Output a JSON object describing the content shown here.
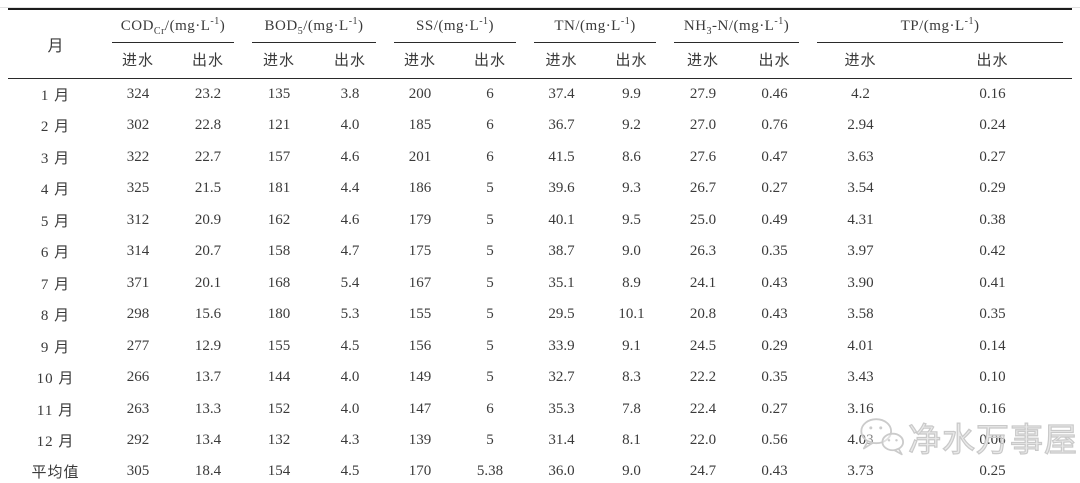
{
  "table": {
    "month_header": "月",
    "average_label": "平均值",
    "subheaders": {
      "in": "进水",
      "out": "出水"
    },
    "groups": [
      {
        "base": "COD",
        "sub": "Cr",
        "tail": "",
        "unit_pre": "/(mg·L",
        "unit_sup": "-1",
        "unit_post": ")"
      },
      {
        "base": "BOD",
        "sub": "5",
        "tail": "",
        "unit_pre": "/(mg·L",
        "unit_sup": "-1",
        "unit_post": ")"
      },
      {
        "base": "SS",
        "sub": "",
        "tail": "",
        "unit_pre": "/(mg·L",
        "unit_sup": "-1",
        "unit_post": ")"
      },
      {
        "base": "TN",
        "sub": "",
        "tail": "",
        "unit_pre": "/(mg·L",
        "unit_sup": "-1",
        "unit_post": ")"
      },
      {
        "base": "NH",
        "sub": "3",
        "tail": "-N",
        "unit_pre": "/(mg·L",
        "unit_sup": "-1",
        "unit_post": ")"
      },
      {
        "base": "TP",
        "sub": "",
        "tail": "",
        "unit_pre": "/(mg·L",
        "unit_sup": "-1",
        "unit_post": ")"
      }
    ],
    "rows": [
      {
        "month": "1 月",
        "values": [
          "324",
          "23.2",
          "135",
          "3.8",
          "200",
          "6",
          "37.4",
          "9.9",
          "27.9",
          "0.46",
          "4.2",
          "0.16"
        ]
      },
      {
        "month": "2 月",
        "values": [
          "302",
          "22.8",
          "121",
          "4.0",
          "185",
          "6",
          "36.7",
          "9.2",
          "27.0",
          "0.76",
          "2.94",
          "0.24"
        ]
      },
      {
        "month": "3 月",
        "values": [
          "322",
          "22.7",
          "157",
          "4.6",
          "201",
          "6",
          "41.5",
          "8.6",
          "27.6",
          "0.47",
          "3.63",
          "0.27"
        ]
      },
      {
        "month": "4 月",
        "values": [
          "325",
          "21.5",
          "181",
          "4.4",
          "186",
          "5",
          "39.6",
          "9.3",
          "26.7",
          "0.27",
          "3.54",
          "0.29"
        ]
      },
      {
        "month": "5 月",
        "values": [
          "312",
          "20.9",
          "162",
          "4.6",
          "179",
          "5",
          "40.1",
          "9.5",
          "25.0",
          "0.49",
          "4.31",
          "0.38"
        ]
      },
      {
        "month": "6 月",
        "values": [
          "314",
          "20.7",
          "158",
          "4.7",
          "175",
          "5",
          "38.7",
          "9.0",
          "26.3",
          "0.35",
          "3.97",
          "0.42"
        ]
      },
      {
        "month": "7 月",
        "values": [
          "371",
          "20.1",
          "168",
          "5.4",
          "167",
          "5",
          "35.1",
          "8.9",
          "24.1",
          "0.43",
          "3.90",
          "0.41"
        ]
      },
      {
        "month": "8 月",
        "values": [
          "298",
          "15.6",
          "180",
          "5.3",
          "155",
          "5",
          "29.5",
          "10.1",
          "20.8",
          "0.43",
          "3.58",
          "0.35"
        ]
      },
      {
        "month": "9 月",
        "values": [
          "277",
          "12.9",
          "155",
          "4.5",
          "156",
          "5",
          "33.9",
          "9.1",
          "24.5",
          "0.29",
          "4.01",
          "0.14"
        ]
      },
      {
        "month": "10 月",
        "values": [
          "266",
          "13.7",
          "144",
          "4.0",
          "149",
          "5",
          "32.7",
          "8.3",
          "22.2",
          "0.35",
          "3.43",
          "0.10"
        ]
      },
      {
        "month": "11 月",
        "values": [
          "263",
          "13.3",
          "152",
          "4.0",
          "147",
          "6",
          "35.3",
          "7.8",
          "22.4",
          "0.27",
          "3.16",
          "0.16"
        ]
      },
      {
        "month": "12 月",
        "values": [
          "292",
          "13.4",
          "132",
          "4.3",
          "139",
          "5",
          "31.4",
          "8.1",
          "22.0",
          "0.56",
          "4.03",
          "0.06"
        ]
      },
      {
        "month": "平均值",
        "values": [
          "305",
          "18.4",
          "154",
          "4.5",
          "170",
          "5.38",
          "36.0",
          "9.0",
          "24.7",
          "0.43",
          "3.73",
          "0.25"
        ]
      }
    ]
  },
  "watermark": {
    "text": "净水万事屋",
    "icon": "wechat-icon"
  }
}
